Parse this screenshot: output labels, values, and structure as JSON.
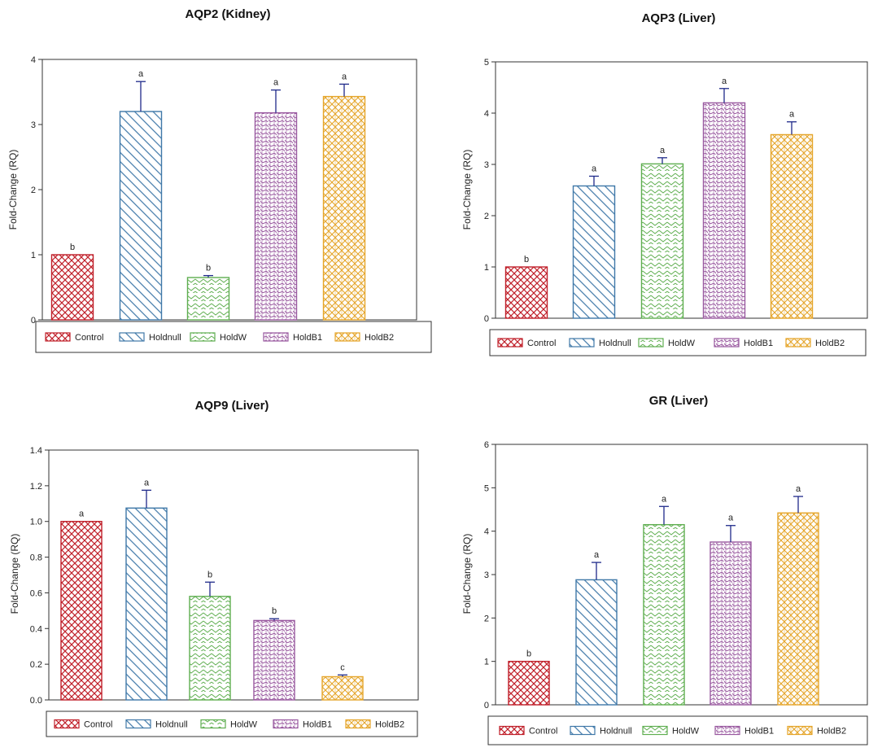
{
  "legend_names": [
    "Control",
    "Holdnull",
    "HoldW",
    "HoldB1",
    "HoldB2"
  ],
  "series_colors": [
    "#c0202a",
    "#3f78a8",
    "#5fae50",
    "#9a5aa0",
    "#e5a52a"
  ],
  "chart_data": [
    {
      "type": "bar",
      "title": "AQP2 (Kidney)",
      "ylabel": "Fold-Change (RQ)",
      "xlabel": "",
      "categories": [
        "Control",
        "Holdnull",
        "HoldW",
        "HoldB1",
        "HoldB2"
      ],
      "values": [
        1.0,
        3.2,
        0.65,
        3.18,
        3.43
      ],
      "errors": [
        0.0,
        0.46,
        0.03,
        0.35,
        0.19
      ],
      "letters": [
        "b",
        "a",
        "b",
        "a",
        "a"
      ],
      "ylim": [
        0,
        4
      ],
      "yticks": [
        "0",
        "1",
        "2",
        "3",
        "4"
      ],
      "legend": [
        "Control",
        "Holdnull",
        "HoldW",
        "HoldB1",
        "HoldB2"
      ],
      "legend_position": "bottom"
    },
    {
      "type": "bar",
      "title": "AQP3 (Liver)",
      "ylabel": "Fold-Change (RQ)",
      "xlabel": "",
      "categories": [
        "Control",
        "Holdnull",
        "HoldW",
        "HoldB1",
        "HoldB2"
      ],
      "values": [
        1.0,
        2.58,
        3.01,
        4.2,
        3.58
      ],
      "errors": [
        0.0,
        0.19,
        0.12,
        0.28,
        0.25
      ],
      "letters": [
        "b",
        "a",
        "a",
        "a",
        "a"
      ],
      "ylim": [
        0,
        5
      ],
      "yticks": [
        "0",
        "1",
        "2",
        "3",
        "4",
        "5"
      ],
      "legend": [
        "Control",
        "Holdnull",
        "HoldW",
        "HoldB1",
        "HoldB2"
      ],
      "legend_position": "bottom"
    },
    {
      "type": "bar",
      "title": "AQP9 (Liver)",
      "ylabel": "Fold-Change (RQ)",
      "xlabel": "",
      "categories": [
        "Control",
        "Holdnull",
        "HoldW",
        "HoldB1",
        "HoldB2"
      ],
      "values": [
        1.0,
        1.075,
        0.58,
        0.445,
        0.13
      ],
      "errors": [
        0.0,
        0.1,
        0.08,
        0.01,
        0.01
      ],
      "letters": [
        "a",
        "a",
        "b",
        "b",
        "c"
      ],
      "ylim": [
        0,
        1.4
      ],
      "yticks": [
        "0.0",
        "0.2",
        "0.4",
        "0.6",
        "0.8",
        "1.0",
        "1.2",
        "1.4"
      ],
      "legend": [
        "Control",
        "Holdnull",
        "HoldW",
        "HoldB1",
        "HoldB2"
      ],
      "legend_position": "bottom"
    },
    {
      "type": "bar",
      "title": "GR (Liver)",
      "ylabel": "Fold-Change (RQ)",
      "xlabel": "",
      "categories": [
        "Control",
        "Holdnull",
        "HoldW",
        "HoldB1",
        "HoldB2"
      ],
      "values": [
        1.0,
        2.88,
        4.15,
        3.75,
        4.42
      ],
      "errors": [
        0.0,
        0.4,
        0.42,
        0.38,
        0.38
      ],
      "letters": [
        "b",
        "a",
        "a",
        "a",
        "a"
      ],
      "ylim": [
        0,
        6
      ],
      "yticks": [
        "0",
        "1",
        "2",
        "3",
        "4",
        "5",
        "6"
      ],
      "legend": [
        "Control",
        "Holdnull",
        "HoldW",
        "HoldB1",
        "HoldB2"
      ],
      "legend_position": "bottom"
    }
  ]
}
